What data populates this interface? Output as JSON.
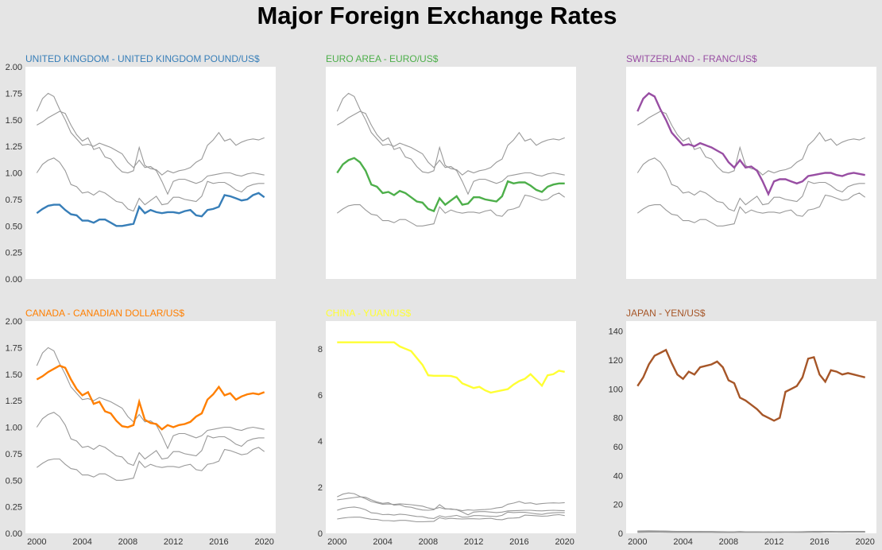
{
  "title": "Major Foreign Exchange Rates",
  "chart_data": [
    {
      "type": "line",
      "title": "UNITED KINGDOM - UNITED KINGDOM POUND/US$",
      "color": "#377eb8",
      "highlight": "UK",
      "ylim": [
        0,
        2
      ],
      "yticks": [
        "0.00",
        "0.25",
        "0.50",
        "0.75",
        "1.00",
        "1.25",
        "1.50",
        "1.75",
        "2.00"
      ],
      "xticks": [],
      "background": [
        "EU",
        "CH",
        "CA"
      ]
    },
    {
      "type": "line",
      "title": "EURO AREA - EURO/US$",
      "color": "#4daf4a",
      "highlight": "EU",
      "ylim": [
        0,
        2
      ],
      "yticks": [],
      "xticks": [],
      "background": [
        "UK",
        "CH",
        "CA"
      ]
    },
    {
      "type": "line",
      "title": "SWITZERLAND - FRANC/US$",
      "color": "#984ea3",
      "highlight": "CH",
      "ylim": [
        0,
        2
      ],
      "yticks": [],
      "xticks": [],
      "background": [
        "UK",
        "EU",
        "CA"
      ]
    },
    {
      "type": "line",
      "title": "CANADA - CANADIAN DOLLAR/US$",
      "color": "#ff7f00",
      "highlight": "CA",
      "ylim": [
        0,
        2
      ],
      "yticks": [
        "0.00",
        "0.25",
        "0.50",
        "0.75",
        "1.00",
        "1.25",
        "1.50",
        "1.75",
        "2.00"
      ],
      "xticks": [
        "2000",
        "2004",
        "2008",
        "2012",
        "2016",
        "2020"
      ],
      "background": [
        "UK",
        "EU",
        "CH"
      ]
    },
    {
      "type": "line",
      "title": "CHINA - YUAN/US$",
      "color": "#ffff33",
      "highlight": "CN",
      "ylim": [
        0,
        9.2
      ],
      "yticks": [
        "0",
        "2",
        "4",
        "6",
        "8"
      ],
      "xticks": [
        "2000",
        "2004",
        "2008",
        "2012",
        "2016",
        "2020"
      ],
      "background": [
        "UK",
        "EU",
        "CH",
        "CA"
      ]
    },
    {
      "type": "line",
      "title": "JAPAN - YEN/US$",
      "color": "#a65628",
      "highlight": "JP",
      "ylim": [
        0,
        147
      ],
      "yticks": [
        "0",
        "20",
        "40",
        "60",
        "80",
        "100",
        "120",
        "140"
      ],
      "xticks": [
        "2000",
        "2004",
        "2008",
        "2012",
        "2016",
        "2020"
      ],
      "background": [
        "UK",
        "EU",
        "CH",
        "CA"
      ]
    }
  ],
  "series": {
    "years": [
      2000,
      2000.5,
      2001,
      2001.5,
      2002,
      2002.5,
      2003,
      2003.5,
      2004,
      2004.5,
      2005,
      2005.5,
      2006,
      2006.5,
      2007,
      2007.5,
      2008,
      2008.5,
      2009,
      2009.5,
      2010,
      2010.5,
      2011,
      2011.5,
      2012,
      2012.5,
      2013,
      2013.5,
      2014,
      2014.5,
      2015,
      2015.5,
      2016,
      2016.5,
      2017,
      2017.5,
      2018,
      2018.5,
      2019,
      2019.5,
      2020
    ],
    "UK": [
      0.62,
      0.66,
      0.69,
      0.7,
      0.7,
      0.65,
      0.61,
      0.6,
      0.55,
      0.55,
      0.53,
      0.56,
      0.56,
      0.53,
      0.5,
      0.5,
      0.51,
      0.52,
      0.68,
      0.62,
      0.65,
      0.63,
      0.62,
      0.63,
      0.63,
      0.62,
      0.64,
      0.65,
      0.6,
      0.59,
      0.65,
      0.66,
      0.68,
      0.79,
      0.78,
      0.76,
      0.74,
      0.75,
      0.79,
      0.81,
      0.77
    ],
    "EU": [
      1.0,
      1.08,
      1.12,
      1.14,
      1.1,
      1.02,
      0.89,
      0.87,
      0.81,
      0.82,
      0.79,
      0.83,
      0.81,
      0.77,
      0.73,
      0.72,
      0.66,
      0.64,
      0.76,
      0.7,
      0.74,
      0.78,
      0.7,
      0.71,
      0.77,
      0.77,
      0.75,
      0.74,
      0.73,
      0.78,
      0.92,
      0.9,
      0.91,
      0.91,
      0.88,
      0.84,
      0.82,
      0.87,
      0.89,
      0.9,
      0.9
    ],
    "CH": [
      1.58,
      1.7,
      1.75,
      1.72,
      1.6,
      1.5,
      1.38,
      1.32,
      1.26,
      1.27,
      1.25,
      1.28,
      1.26,
      1.24,
      1.21,
      1.18,
      1.1,
      1.05,
      1.12,
      1.05,
      1.06,
      1.02,
      0.92,
      0.8,
      0.92,
      0.94,
      0.94,
      0.92,
      0.9,
      0.92,
      0.97,
      0.98,
      0.99,
      1.0,
      1.0,
      0.98,
      0.97,
      0.99,
      1.0,
      0.99,
      0.98
    ],
    "CA": [
      1.45,
      1.48,
      1.52,
      1.55,
      1.58,
      1.56,
      1.45,
      1.36,
      1.3,
      1.33,
      1.22,
      1.24,
      1.15,
      1.13,
      1.06,
      1.01,
      1.0,
      1.02,
      1.24,
      1.07,
      1.04,
      1.03,
      0.98,
      1.02,
      1.0,
      1.02,
      1.03,
      1.05,
      1.1,
      1.13,
      1.26,
      1.31,
      1.38,
      1.3,
      1.32,
      1.26,
      1.29,
      1.31,
      1.32,
      1.31,
      1.33
    ],
    "CN": [
      8.28,
      8.28,
      8.28,
      8.28,
      8.28,
      8.28,
      8.28,
      8.28,
      8.28,
      8.28,
      8.28,
      8.1,
      8.0,
      7.9,
      7.6,
      7.3,
      6.85,
      6.83,
      6.83,
      6.83,
      6.82,
      6.75,
      6.5,
      6.4,
      6.3,
      6.35,
      6.2,
      6.1,
      6.15,
      6.2,
      6.25,
      6.45,
      6.6,
      6.7,
      6.9,
      6.65,
      6.4,
      6.85,
      6.9,
      7.05,
      7.0
    ],
    "JP": [
      102,
      108,
      117,
      123,
      125,
      127,
      118,
      110,
      107,
      112,
      110,
      115,
      116,
      117,
      119,
      115,
      106,
      104,
      94,
      92,
      89,
      86,
      82,
      80,
      78,
      80,
      98,
      100,
      102,
      108,
      121,
      122,
      110,
      105,
      113,
      112,
      110,
      111,
      110,
      109,
      108
    ]
  }
}
